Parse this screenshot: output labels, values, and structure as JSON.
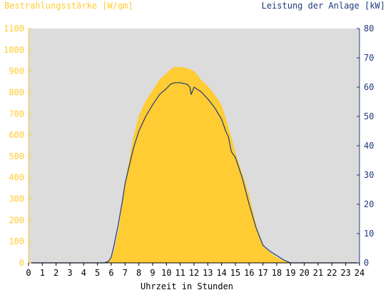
{
  "colors": {
    "irradiance": "#FFCC33",
    "power": "#1F3A7A",
    "plot_background": "#DCDCDC",
    "axis_left": "#FFCC33",
    "axis_right": "#1F3A7A",
    "axis_bottom": "#000000"
  },
  "chart_data": {
    "type": "area",
    "left_axis_label": "Bestrahlungsstärke [W/qm]",
    "right_axis_label": "Leistung der Anlage [kW]",
    "xlabel": "Uhrzeit in Stunden",
    "xlim": [
      0,
      24
    ],
    "ylim_left": [
      0,
      1100
    ],
    "ylim_right": [
      0,
      80
    ],
    "x_ticks": [
      "0",
      "1",
      "2",
      "3",
      "4",
      "5",
      "6",
      "7",
      "8",
      "9",
      "10",
      "11",
      "12",
      "13",
      "14",
      "15",
      "16",
      "17",
      "18",
      "19",
      "20",
      "21",
      "22",
      "23",
      "24"
    ],
    "y_left_ticks": [
      "0",
      "100",
      "200",
      "300",
      "400",
      "500",
      "600",
      "700",
      "800",
      "900",
      "1000",
      "1100"
    ],
    "y_right_ticks": [
      "0",
      "10",
      "20",
      "30",
      "40",
      "50",
      "60",
      "70",
      "80"
    ],
    "grid": false,
    "series": [
      {
        "name": "Bestrahlungsstärke [W/qm]",
        "axis": "left",
        "style": "area",
        "x": [
          0,
          5.5,
          5.8,
          6.0,
          6.2,
          6.5,
          6.8,
          7.0,
          7.3,
          7.6,
          8.0,
          8.5,
          9.0,
          9.5,
          10.0,
          10.3,
          10.6,
          11.0,
          11.5,
          12.0,
          12.3,
          12.5,
          13.0,
          13.5,
          14.0,
          14.2,
          14.5,
          14.7,
          15.0,
          15.5,
          16.0,
          16.5,
          17.0,
          17.5,
          18.0,
          18.5,
          19.0,
          19.2,
          24
        ],
        "values": [
          0,
          0,
          5,
          20,
          60,
          150,
          280,
          380,
          480,
          590,
          690,
          760,
          810,
          860,
          890,
          910,
          920,
          920,
          915,
          900,
          880,
          860,
          830,
          790,
          740,
          700,
          640,
          590,
          520,
          420,
          320,
          180,
          80,
          50,
          25,
          10,
          2,
          0,
          0
        ]
      },
      {
        "name": "Leistung der Anlage [kW]",
        "axis": "right",
        "style": "line",
        "x": [
          0,
          5.5,
          5.8,
          6.0,
          6.2,
          6.5,
          6.8,
          7.0,
          7.3,
          7.6,
          8.0,
          8.5,
          9.0,
          9.5,
          10.0,
          10.3,
          10.6,
          11.0,
          11.5,
          11.7,
          11.8,
          12.0,
          12.5,
          13.0,
          13.5,
          14.0,
          14.3,
          14.5,
          14.7,
          15.0,
          15.5,
          16.0,
          16.5,
          17.0,
          17.5,
          18.0,
          18.5,
          19.0,
          24
        ],
        "values": [
          0,
          0,
          0.5,
          2,
          6,
          13,
          21,
          27,
          33,
          39,
          45,
          50,
          54,
          57.5,
          59.5,
          61,
          61.5,
          61.5,
          61,
          60,
          57.5,
          60,
          58.5,
          56,
          53,
          49,
          45,
          43,
          38,
          36,
          29,
          20,
          12,
          6,
          4,
          2.5,
          1,
          0,
          0
        ]
      }
    ]
  }
}
